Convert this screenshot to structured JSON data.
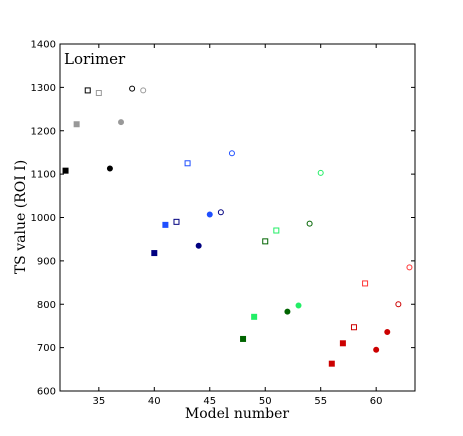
{
  "chart_data": {
    "type": "scatter",
    "title": "Lorimer",
    "xlabel": "Model number",
    "ylabel": "TS value (ROI  I)",
    "xlim": [
      31.5,
      63.5
    ],
    "ylim": [
      600,
      1400
    ],
    "x_ticks": [
      35,
      40,
      45,
      50,
      55,
      60
    ],
    "y_ticks": [
      600,
      700,
      800,
      900,
      1000,
      1100,
      1200,
      1300,
      1400
    ],
    "grid": false,
    "legend": "none",
    "points": [
      {
        "x": 32,
        "y": 1108,
        "marker": "square",
        "filled": true,
        "color": "#000000"
      },
      {
        "x": 33,
        "y": 1215,
        "marker": "square",
        "filled": true,
        "color": "#999999"
      },
      {
        "x": 34,
        "y": 1293,
        "marker": "square",
        "filled": false,
        "color": "#000000"
      },
      {
        "x": 35,
        "y": 1287,
        "marker": "square",
        "filled": false,
        "color": "#999999"
      },
      {
        "x": 36,
        "y": 1113,
        "marker": "circle",
        "filled": true,
        "color": "#000000"
      },
      {
        "x": 37,
        "y": 1220,
        "marker": "circle",
        "filled": true,
        "color": "#999999"
      },
      {
        "x": 38,
        "y": 1297,
        "marker": "circle",
        "filled": false,
        "color": "#000000"
      },
      {
        "x": 39,
        "y": 1293,
        "marker": "circle",
        "filled": false,
        "color": "#999999"
      },
      {
        "x": 40,
        "y": 918,
        "marker": "square",
        "filled": true,
        "color": "#000080"
      },
      {
        "x": 41,
        "y": 983,
        "marker": "square",
        "filled": true,
        "color": "#1f4fff"
      },
      {
        "x": 42,
        "y": 990,
        "marker": "square",
        "filled": false,
        "color": "#000080"
      },
      {
        "x": 43,
        "y": 1125,
        "marker": "square",
        "filled": false,
        "color": "#1f4fff"
      },
      {
        "x": 44,
        "y": 935,
        "marker": "circle",
        "filled": true,
        "color": "#000080"
      },
      {
        "x": 45,
        "y": 1007,
        "marker": "circle",
        "filled": true,
        "color": "#1f4fff"
      },
      {
        "x": 46,
        "y": 1012,
        "marker": "circle",
        "filled": false,
        "color": "#000080"
      },
      {
        "x": 47,
        "y": 1148,
        "marker": "circle",
        "filled": false,
        "color": "#1f4fff"
      },
      {
        "x": 48,
        "y": 720,
        "marker": "square",
        "filled": true,
        "color": "#006400"
      },
      {
        "x": 49,
        "y": 771,
        "marker": "square",
        "filled": true,
        "color": "#22ee66"
      },
      {
        "x": 50,
        "y": 945,
        "marker": "square",
        "filled": false,
        "color": "#006400"
      },
      {
        "x": 51,
        "y": 970,
        "marker": "square",
        "filled": false,
        "color": "#22ee66"
      },
      {
        "x": 52,
        "y": 783,
        "marker": "circle",
        "filled": true,
        "color": "#006400"
      },
      {
        "x": 53,
        "y": 797,
        "marker": "circle",
        "filled": true,
        "color": "#22ee66"
      },
      {
        "x": 54,
        "y": 986,
        "marker": "circle",
        "filled": false,
        "color": "#006400"
      },
      {
        "x": 55,
        "y": 1103,
        "marker": "circle",
        "filled": false,
        "color": "#22ee66"
      },
      {
        "x": 56,
        "y": 663,
        "marker": "square",
        "filled": true,
        "color": "#cc0000"
      },
      {
        "x": 57,
        "y": 710,
        "marker": "square",
        "filled": true,
        "color": "#cc0000"
      },
      {
        "x": 58,
        "y": 747,
        "marker": "square",
        "filled": false,
        "color": "#cc0000"
      },
      {
        "x": 59,
        "y": 848,
        "marker": "square",
        "filled": false,
        "color": "#ff3333"
      },
      {
        "x": 60,
        "y": 695,
        "marker": "circle",
        "filled": true,
        "color": "#cc0000"
      },
      {
        "x": 61,
        "y": 736,
        "marker": "circle",
        "filled": true,
        "color": "#cc0000"
      },
      {
        "x": 62,
        "y": 800,
        "marker": "circle",
        "filled": false,
        "color": "#cc0000"
      },
      {
        "x": 63,
        "y": 885,
        "marker": "circle",
        "filled": false,
        "color": "#ff3333"
      }
    ]
  }
}
